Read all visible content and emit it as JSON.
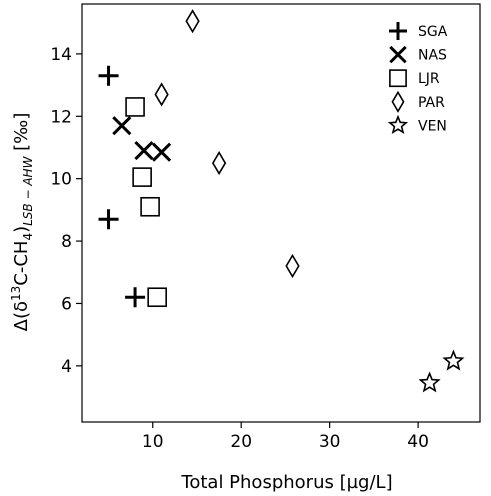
{
  "chart_data": {
    "type": "scatter",
    "xlabel": "Total Phosphorus [µg/L]",
    "ylabel": {
      "parts": [
        "Δ(δ",
        "13",
        "C-CH",
        "4",
        ")",
        "LSB − AHW",
        " [‰]"
      ]
    },
    "xlim": [
      2,
      47
    ],
    "ylim": [
      2.2,
      15.6
    ],
    "xticks": [
      10,
      20,
      30,
      40
    ],
    "yticks": [
      4,
      6,
      8,
      10,
      12,
      14
    ],
    "grid": false,
    "legend_position": "top-right",
    "series": [
      {
        "name": "SGA",
        "marker": "plus",
        "points": [
          [
            5.0,
            13.3
          ],
          [
            5.0,
            8.7
          ],
          [
            8.0,
            6.2
          ]
        ]
      },
      {
        "name": "NAS",
        "marker": "x",
        "points": [
          [
            6.5,
            11.7
          ],
          [
            9.0,
            10.9
          ],
          [
            11.0,
            10.85
          ]
        ]
      },
      {
        "name": "LJR",
        "marker": "square",
        "points": [
          [
            8.0,
            12.3
          ],
          [
            8.8,
            10.05
          ],
          [
            9.7,
            9.1
          ],
          [
            10.5,
            6.2
          ]
        ]
      },
      {
        "name": "PAR",
        "marker": "diamond",
        "points": [
          [
            14.5,
            15.05
          ],
          [
            11.0,
            12.7
          ],
          [
            17.5,
            10.5
          ],
          [
            25.8,
            7.2
          ]
        ]
      },
      {
        "name": "VEN",
        "marker": "star",
        "points": [
          [
            41.3,
            3.45
          ],
          [
            44.0,
            4.15
          ]
        ]
      }
    ]
  }
}
